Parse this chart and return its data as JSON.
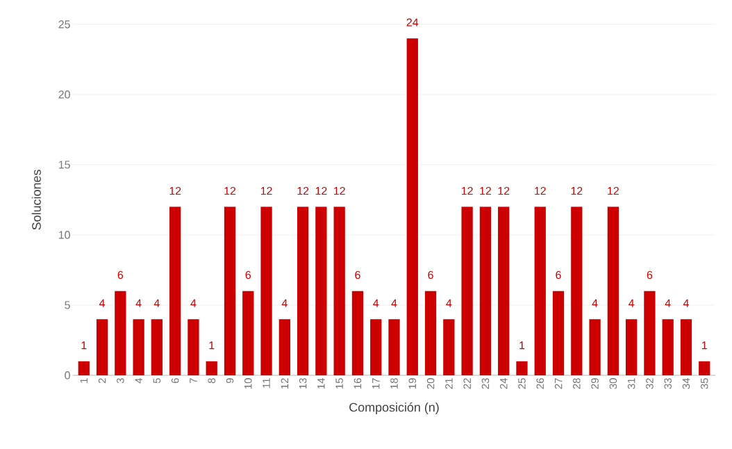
{
  "chart_data": {
    "type": "bar",
    "xlabel": "Composición (n)",
    "ylabel": "Soluciones",
    "categories": [
      "1",
      "2",
      "3",
      "4",
      "5",
      "6",
      "7",
      "8",
      "9",
      "10",
      "11",
      "12",
      "13",
      "14",
      "15",
      "16",
      "17",
      "18",
      "19",
      "20",
      "21",
      "22",
      "23",
      "24",
      "25",
      "26",
      "27",
      "28",
      "29",
      "30",
      "31",
      "32",
      "33",
      "34",
      "35"
    ],
    "values": [
      1,
      4,
      6,
      4,
      4,
      12,
      4,
      1,
      12,
      6,
      12,
      4,
      12,
      12,
      12,
      6,
      4,
      4,
      24,
      6,
      4,
      12,
      12,
      12,
      1,
      12,
      6,
      12,
      4,
      12,
      4,
      6,
      4,
      4,
      1
    ],
    "color": "#cc0000",
    "ylim": [
      0,
      25
    ],
    "yticks": [
      0,
      5,
      10,
      15,
      20,
      25
    ],
    "grid": "y",
    "data_labels": true
  }
}
